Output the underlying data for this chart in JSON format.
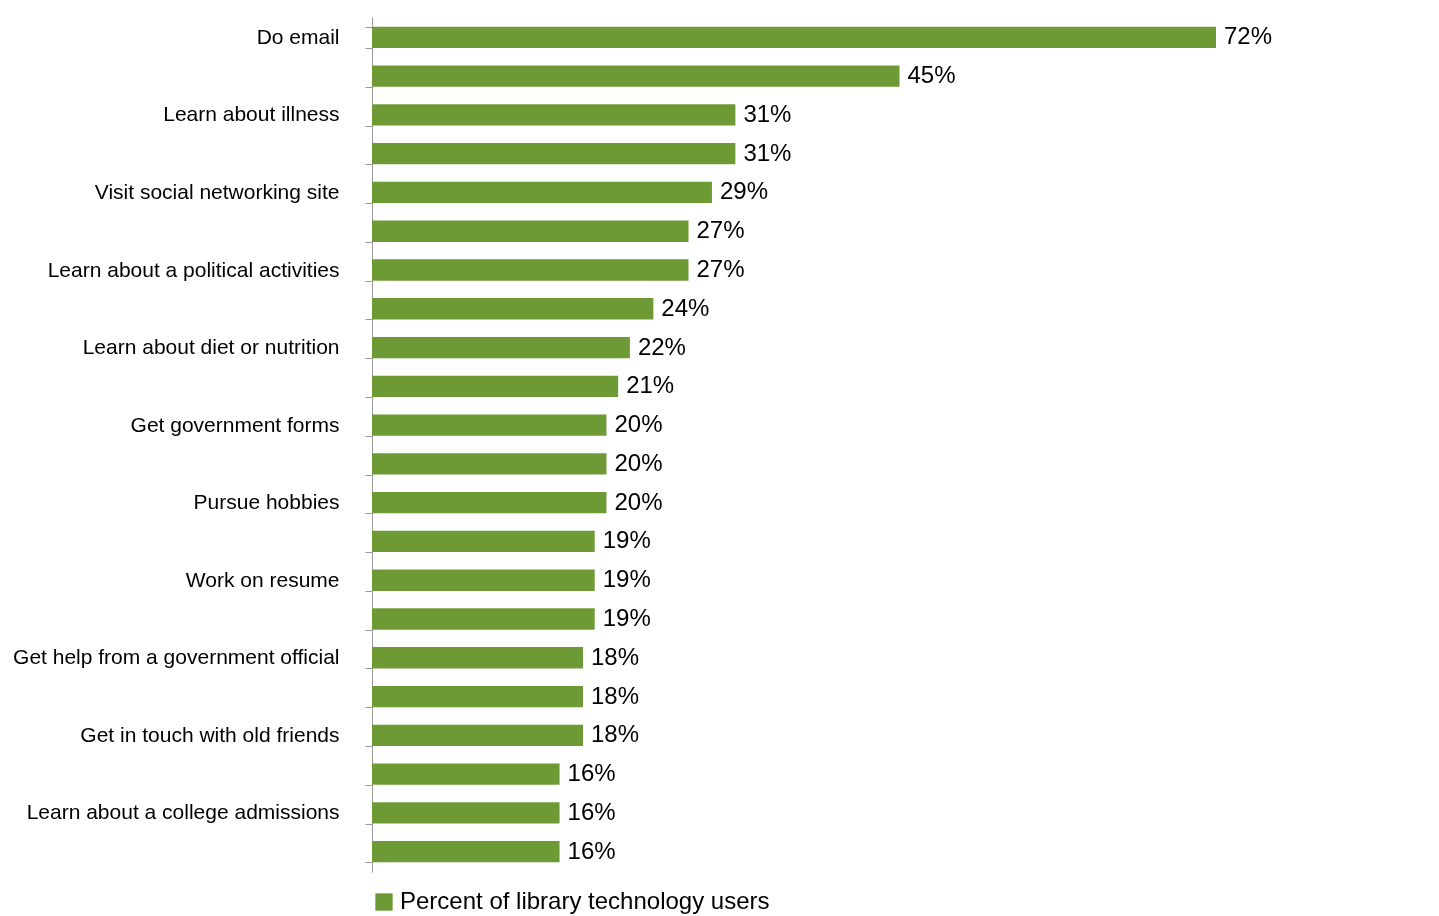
{
  "chart_data": {
    "type": "bar",
    "orientation": "horizontal",
    "categories": [
      "Do email",
      null,
      "Learn about illness",
      null,
      "Visit social networking site",
      null,
      "Learn about a political activities",
      null,
      "Learn about diet or nutrition",
      null,
      "Get government forms",
      null,
      "Pursue hobbies",
      null,
      "Work on resume",
      null,
      "Get help from a government official",
      null,
      "Get in touch with old friends",
      null,
      "Learn about a college admissions",
      null
    ],
    "series": [
      {
        "name": "Percent of library technology users",
        "color": "#6e9a36",
        "values": [
          72,
          45,
          31,
          31,
          29,
          27,
          27,
          24,
          22,
          21,
          20,
          20,
          20,
          19,
          19,
          19,
          18,
          18,
          18,
          16,
          16,
          16
        ],
        "value_labels": [
          "72%",
          "45%",
          "31%",
          "31%",
          "29%",
          "27%",
          "27%",
          "24%",
          "22%",
          "21%",
          "20%",
          "20%",
          "20%",
          "19%",
          "19%",
          "19%",
          "18%",
          "18%",
          "18%",
          "16%",
          "16%",
          "16%"
        ]
      }
    ],
    "legend": "bottom",
    "grid": false
  }
}
